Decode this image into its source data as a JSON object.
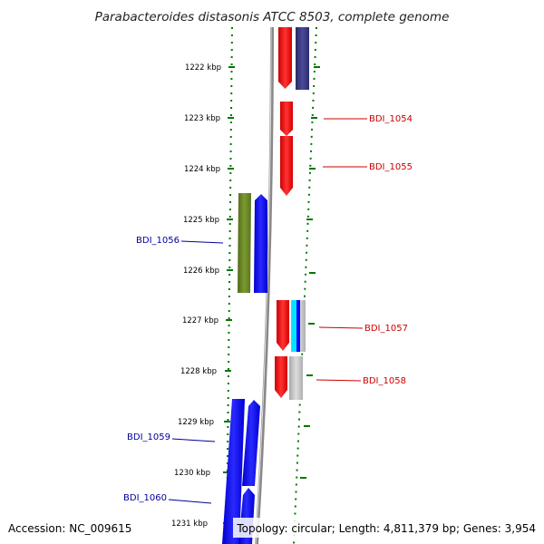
{
  "header": {
    "title": "Parabacteroides distasonis ATCC 8503, complete genome"
  },
  "footer": {
    "accession": "Accession: NC_009615",
    "summary": "Topology: circular; Length: 4,811,379 bp; Genes: 3,954"
  },
  "scale": {
    "ticks": [
      "1222 kbp",
      "1223 kbp",
      "1224 kbp",
      "1225 kbp",
      "1226 kbp",
      "1227 kbp",
      "1228 kbp",
      "1229 kbp",
      "1230 kbp",
      "1231 kbp"
    ]
  },
  "gene_labels": {
    "bdi_1054": "BDI_1054",
    "bdi_1055": "BDI_1055",
    "bdi_1056": "BDI_1056",
    "bdi_1057": "BDI_1057",
    "bdi_1058": "BDI_1058",
    "bdi_1059": "BDI_1059",
    "bdi_1060": "BDI_1060"
  },
  "colors": {
    "forward_label": "#cc0000",
    "reverse_label": "#000099",
    "forward_gene": "#ff0000",
    "reverse_gene": "#0000ff",
    "olive_gene": "#6b8e23",
    "navy_gene": "#33337a",
    "grey_gene": "#bdbdbd",
    "cyan_gene": "#00e5ff",
    "tick_green": "#007700",
    "backbone": "#888888"
  }
}
